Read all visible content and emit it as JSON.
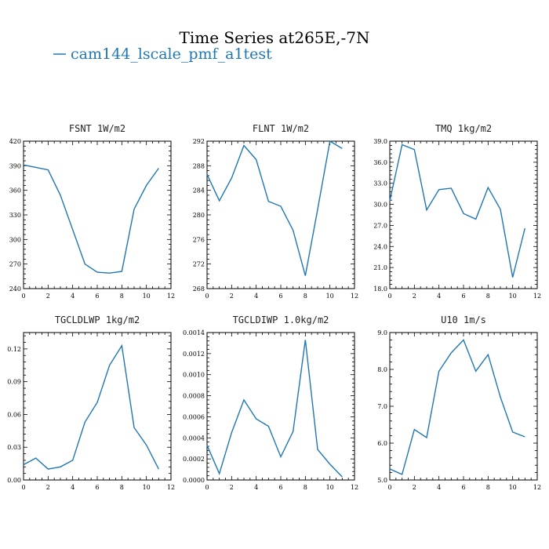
{
  "figure": {
    "title": "Time Series at265E,-7N",
    "legend": {
      "label": "cam144_lscale_pmf_a1test",
      "color": "#1f77b4"
    },
    "line_color": "#1f77b4"
  },
  "chart_data": [
    {
      "type": "line",
      "title": "FSNT  1W/m2",
      "x": [
        0,
        1,
        2,
        3,
        4,
        5,
        6,
        7,
        8,
        9,
        10,
        11
      ],
      "series": [
        {
          "name": "cam144_lscale_pmf_a1test",
          "values": [
            391,
            388,
            385,
            354,
            312,
            270,
            260,
            259,
            261,
            337,
            366,
            387
          ]
        }
      ],
      "xlim": [
        0,
        12
      ],
      "ylim": [
        240,
        420
      ],
      "xticks": [
        0,
        2,
        4,
        6,
        8,
        10,
        12
      ],
      "yticks": [
        240,
        270,
        300,
        330,
        360,
        390,
        420
      ],
      "ytick_labels": [
        "240",
        "270",
        "300",
        "330",
        "360",
        "390",
        "420"
      ]
    },
    {
      "type": "line",
      "title": "FLNT  1W/m2",
      "x": [
        0,
        1,
        2,
        3,
        4,
        5,
        6,
        7,
        8,
        9,
        10,
        11
      ],
      "series": [
        {
          "name": "cam144_lscale_pmf_a1test",
          "values": [
            286.6,
            282.3,
            286.0,
            291.3,
            289.0,
            282.2,
            281.4,
            277.5,
            270.1,
            280.9,
            292.0,
            290.8
          ]
        }
      ],
      "xlim": [
        0,
        12
      ],
      "ylim": [
        268,
        292
      ],
      "xticks": [
        0,
        2,
        4,
        6,
        8,
        10,
        12
      ],
      "yticks": [
        268,
        272,
        276,
        280,
        284,
        288,
        292
      ],
      "ytick_labels": [
        "268",
        "272",
        "276",
        "280",
        "284",
        "288",
        "292"
      ]
    },
    {
      "type": "line",
      "title": "TMQ  1kg/m2",
      "x": [
        0,
        1,
        2,
        3,
        4,
        5,
        6,
        7,
        8,
        9,
        10,
        11
      ],
      "series": [
        {
          "name": "cam144_lscale_pmf_a1test",
          "values": [
            30.5,
            38.5,
            37.8,
            29.2,
            32.1,
            32.3,
            28.7,
            27.9,
            32.4,
            29.3,
            19.6,
            26.6
          ]
        }
      ],
      "xlim": [
        0,
        12
      ],
      "ylim": [
        18,
        39
      ],
      "xticks": [
        0,
        2,
        4,
        6,
        8,
        10,
        12
      ],
      "yticks": [
        18,
        21,
        24,
        27,
        30,
        33,
        36,
        39
      ],
      "ytick_labels": [
        "18.0",
        "21.0",
        "24.0",
        "27.0",
        "30.0",
        "33.0",
        "36.0",
        "39.0"
      ]
    },
    {
      "type": "line",
      "title": "TGCLDLWP  1kg/m2",
      "x": [
        0,
        1,
        2,
        3,
        4,
        5,
        6,
        7,
        8,
        9,
        10,
        11
      ],
      "series": [
        {
          "name": "cam144_lscale_pmf_a1test",
          "values": [
            0.014,
            0.02,
            0.01,
            0.012,
            0.018,
            0.053,
            0.071,
            0.105,
            0.123,
            0.048,
            0.032,
            0.01
          ]
        }
      ],
      "xlim": [
        0,
        12
      ],
      "ylim": [
        0,
        0.135
      ],
      "xticks": [
        0,
        2,
        4,
        6,
        8,
        10,
        12
      ],
      "yticks": [
        0,
        0.03,
        0.06,
        0.09,
        0.12
      ],
      "ytick_labels": [
        "0.00",
        "0.03",
        "0.06",
        "0.09",
        "0.12"
      ]
    },
    {
      "type": "line",
      "title": "TGCLDIWP  1.0kg/m2",
      "x": [
        0,
        1,
        2,
        3,
        4,
        5,
        6,
        7,
        8,
        9,
        10,
        11
      ],
      "series": [
        {
          "name": "cam144_lscale_pmf_a1test",
          "values": [
            0.00033,
            6e-05,
            0.00045,
            0.00076,
            0.00058,
            0.00051,
            0.00022,
            0.00046,
            0.00133,
            0.00029,
            0.00015,
            3e-05
          ]
        }
      ],
      "xlim": [
        0,
        12
      ],
      "ylim": [
        0,
        0.0014
      ],
      "xticks": [
        0,
        2,
        4,
        6,
        8,
        10,
        12
      ],
      "yticks": [
        0,
        0.0002,
        0.0004,
        0.0006,
        0.0008,
        0.001,
        0.0012,
        0.0014
      ],
      "ytick_labels": [
        "0.0000",
        "0.0002",
        "0.0004",
        "0.0006",
        "0.0008",
        "0.0010",
        "0.0012",
        "0.0014"
      ]
    },
    {
      "type": "line",
      "title": "U10  1m/s",
      "x": [
        0,
        1,
        2,
        3,
        4,
        5,
        6,
        7,
        8,
        9,
        10,
        11
      ],
      "series": [
        {
          "name": "cam144_lscale_pmf_a1test",
          "values": [
            5.3,
            5.15,
            6.37,
            6.15,
            7.95,
            8.45,
            8.8,
            7.95,
            8.4,
            7.25,
            6.3,
            6.17
          ]
        }
      ],
      "xlim": [
        0,
        12
      ],
      "ylim": [
        5,
        9
      ],
      "xticks": [
        0,
        2,
        4,
        6,
        8,
        10,
        12
      ],
      "yticks": [
        5,
        6,
        7,
        8,
        9
      ],
      "ytick_labels": [
        "5.0",
        "6.0",
        "7.0",
        "8.0",
        "9.0"
      ]
    }
  ]
}
